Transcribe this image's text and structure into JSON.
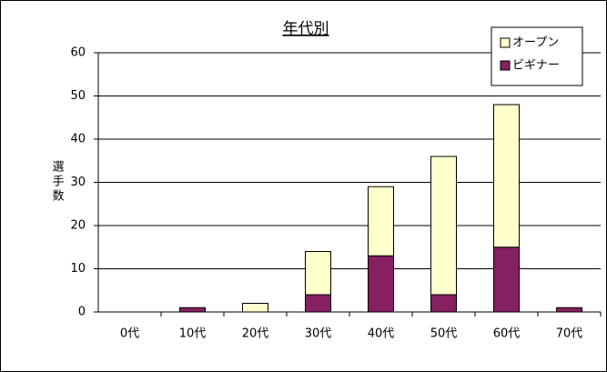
{
  "chart_data": {
    "type": "bar",
    "stacked": true,
    "title": "年代別",
    "ylabel": "選手数",
    "categories": [
      "0代",
      "10代",
      "20代",
      "30代",
      "40代",
      "50代",
      "60代",
      "70代"
    ],
    "series": [
      {
        "name": "オープン",
        "color": "#ffffcc",
        "values": [
          0,
          0,
          2,
          10,
          16,
          32,
          33,
          0
        ]
      },
      {
        "name": "ビギナー",
        "color": "#872060",
        "values": [
          0,
          1,
          0,
          4,
          13,
          4,
          15,
          1
        ]
      }
    ],
    "ylim": [
      0,
      60
    ],
    "yticks": [
      0,
      10,
      20,
      30,
      40,
      50,
      60
    ],
    "grid": true,
    "legend": "upper right"
  }
}
